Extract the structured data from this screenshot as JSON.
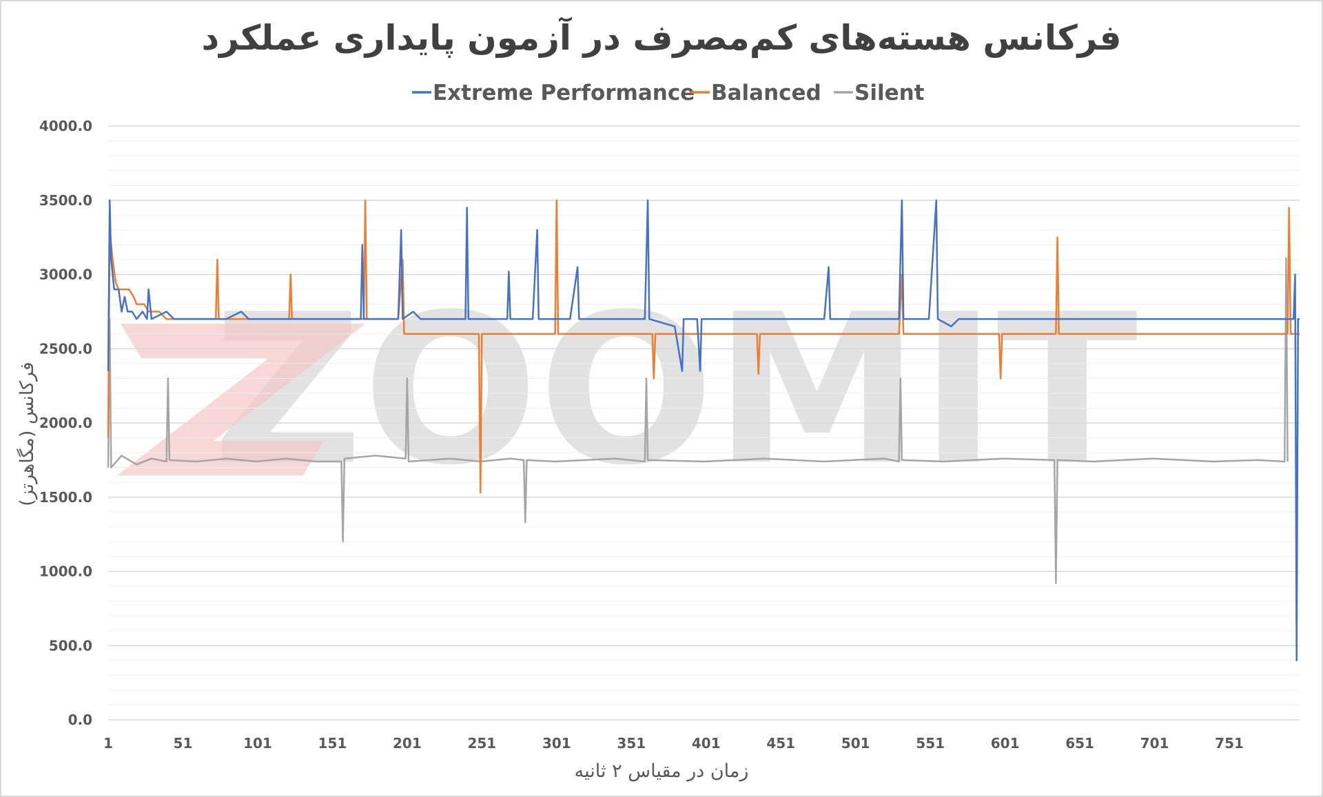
{
  "chart_data": {
    "type": "line",
    "title": "فرکانس هسته‌های کم‌مصرف در آزمون پایداری عملکرد",
    "xlabel": "زمان در مقیاس ۲ ثانیه",
    "ylabel": "فرکانس (مگاهرتز)",
    "watermark": "ZOOMIT",
    "legend_position": "top",
    "grid": true,
    "xlim": [
      1,
      798
    ],
    "ylim": [
      0,
      4000
    ],
    "y_ticks": [
      "0.0",
      "500.0",
      "1000.0",
      "1500.0",
      "2000.0",
      "2500.0",
      "3000.0",
      "3500.0",
      "4000.0"
    ],
    "x_ticks": [
      "1",
      "51",
      "101",
      "151",
      "201",
      "251",
      "301",
      "351",
      "401",
      "451",
      "501",
      "551",
      "601",
      "651",
      "701",
      "751"
    ],
    "series": [
      {
        "name": "Extreme Performance",
        "color": "#4472C4",
        "points": [
          [
            1,
            2350
          ],
          [
            2,
            3500
          ],
          [
            3,
            3100
          ],
          [
            5,
            2900
          ],
          [
            8,
            2900
          ],
          [
            10,
            2750
          ],
          [
            12,
            2850
          ],
          [
            14,
            2750
          ],
          [
            17,
            2750
          ],
          [
            20,
            2700
          ],
          [
            24,
            2750
          ],
          [
            27,
            2700
          ],
          [
            28,
            2900
          ],
          [
            30,
            2700
          ],
          [
            40,
            2750
          ],
          [
            45,
            2700
          ],
          [
            50,
            2700
          ],
          [
            60,
            2700
          ],
          [
            70,
            2700
          ],
          [
            80,
            2700
          ],
          [
            90,
            2750
          ],
          [
            95,
            2700
          ],
          [
            100,
            2700
          ],
          [
            110,
            2700
          ],
          [
            120,
            2700
          ],
          [
            130,
            2700
          ],
          [
            140,
            2700
          ],
          [
            150,
            2700
          ],
          [
            160,
            2700
          ],
          [
            170,
            2700
          ],
          [
            171,
            3200
          ],
          [
            172,
            2700
          ],
          [
            180,
            2700
          ],
          [
            195,
            2700
          ],
          [
            197,
            3300
          ],
          [
            198,
            2700
          ],
          [
            205,
            2750
          ],
          [
            210,
            2700
          ],
          [
            230,
            2700
          ],
          [
            240,
            2700
          ],
          [
            241,
            3450
          ],
          [
            242,
            2700
          ],
          [
            260,
            2700
          ],
          [
            268,
            2700
          ],
          [
            269,
            3020
          ],
          [
            270,
            2700
          ],
          [
            285,
            2700
          ],
          [
            288,
            3300
          ],
          [
            289,
            2700
          ],
          [
            310,
            2700
          ],
          [
            315,
            3050
          ],
          [
            316,
            2700
          ],
          [
            330,
            2700
          ],
          [
            345,
            2700
          ],
          [
            360,
            2700
          ],
          [
            362,
            3500
          ],
          [
            363,
            2700
          ],
          [
            380,
            2650
          ],
          [
            385,
            2350
          ],
          [
            386,
            2700
          ],
          [
            395,
            2700
          ],
          [
            397,
            2350
          ],
          [
            398,
            2700
          ],
          [
            420,
            2700
          ],
          [
            450,
            2700
          ],
          [
            480,
            2700
          ],
          [
            483,
            3050
          ],
          [
            484,
            2700
          ],
          [
            500,
            2700
          ],
          [
            520,
            2700
          ],
          [
            530,
            2700
          ],
          [
            532,
            3500
          ],
          [
            533,
            2700
          ],
          [
            550,
            2700
          ],
          [
            555,
            3500
          ],
          [
            556,
            2700
          ],
          [
            565,
            2650
          ],
          [
            570,
            2700
          ],
          [
            600,
            2700
          ],
          [
            630,
            2700
          ],
          [
            660,
            2700
          ],
          [
            700,
            2700
          ],
          [
            740,
            2700
          ],
          [
            770,
            2700
          ],
          [
            780,
            2700
          ],
          [
            790,
            2700
          ],
          [
            794,
            2700
          ],
          [
            795,
            3000
          ],
          [
            796,
            400
          ],
          [
            797,
            2700
          ],
          [
            798,
            2700
          ]
        ]
      },
      {
        "name": "Balanced",
        "color": "#ED7D31",
        "points": [
          [
            1,
            1900
          ],
          [
            2,
            3300
          ],
          [
            4,
            3100
          ],
          [
            6,
            2950
          ],
          [
            8,
            2900
          ],
          [
            15,
            2900
          ],
          [
            18,
            2850
          ],
          [
            20,
            2800
          ],
          [
            25,
            2800
          ],
          [
            28,
            2750
          ],
          [
            35,
            2750
          ],
          [
            40,
            2700
          ],
          [
            60,
            2700
          ],
          [
            73,
            2700
          ],
          [
            74,
            3100
          ],
          [
            75,
            2700
          ],
          [
            90,
            2700
          ],
          [
            110,
            2700
          ],
          [
            122,
            2700
          ],
          [
            123,
            3000
          ],
          [
            124,
            2700
          ],
          [
            140,
            2700
          ],
          [
            160,
            2700
          ],
          [
            172,
            2700
          ],
          [
            173,
            3500
          ],
          [
            174,
            2700
          ],
          [
            195,
            2700
          ],
          [
            198,
            3100
          ],
          [
            199,
            2600
          ],
          [
            210,
            2600
          ],
          [
            240,
            2600
          ],
          [
            249,
            2600
          ],
          [
            250,
            1530
          ],
          [
            251,
            2600
          ],
          [
            270,
            2600
          ],
          [
            300,
            2600
          ],
          [
            301,
            3500
          ],
          [
            302,
            2600
          ],
          [
            340,
            2600
          ],
          [
            365,
            2600
          ],
          [
            366,
            2300
          ],
          [
            367,
            2600
          ],
          [
            400,
            2600
          ],
          [
            435,
            2600
          ],
          [
            436,
            2330
          ],
          [
            437,
            2600
          ],
          [
            500,
            2600
          ],
          [
            530,
            2600
          ],
          [
            532,
            3000
          ],
          [
            533,
            2600
          ],
          [
            560,
            2600
          ],
          [
            597,
            2600
          ],
          [
            598,
            2300
          ],
          [
            599,
            2600
          ],
          [
            620,
            2600
          ],
          [
            635,
            2600
          ],
          [
            636,
            3250
          ],
          [
            637,
            2600
          ],
          [
            680,
            2600
          ],
          [
            720,
            2600
          ],
          [
            760,
            2600
          ],
          [
            790,
            2600
          ],
          [
            791,
            3450
          ],
          [
            792,
            2600
          ],
          [
            798,
            2600
          ]
        ]
      },
      {
        "name": "Silent",
        "color": "#A5A5A5",
        "points": [
          [
            1,
            1700
          ],
          [
            2,
            2700
          ],
          [
            3,
            1700
          ],
          [
            10,
            1780
          ],
          [
            20,
            1720
          ],
          [
            30,
            1760
          ],
          [
            40,
            1740
          ],
          [
            41,
            2300
          ],
          [
            42,
            1750
          ],
          [
            60,
            1740
          ],
          [
            80,
            1760
          ],
          [
            100,
            1740
          ],
          [
            120,
            1760
          ],
          [
            140,
            1740
          ],
          [
            157,
            1740
          ],
          [
            158,
            1200
          ],
          [
            159,
            1760
          ],
          [
            180,
            1780
          ],
          [
            200,
            1760
          ],
          [
            201,
            2300
          ],
          [
            202,
            1740
          ],
          [
            230,
            1760
          ],
          [
            250,
            1740
          ],
          [
            270,
            1760
          ],
          [
            279,
            1750
          ],
          [
            280,
            1330
          ],
          [
            281,
            1750
          ],
          [
            300,
            1740
          ],
          [
            340,
            1760
          ],
          [
            360,
            1740
          ],
          [
            361,
            2300
          ],
          [
            362,
            1750
          ],
          [
            400,
            1740
          ],
          [
            440,
            1760
          ],
          [
            480,
            1740
          ],
          [
            520,
            1760
          ],
          [
            530,
            1740
          ],
          [
            531,
            2300
          ],
          [
            532,
            1750
          ],
          [
            560,
            1740
          ],
          [
            600,
            1760
          ],
          [
            634,
            1750
          ],
          [
            635,
            920
          ],
          [
            636,
            1750
          ],
          [
            660,
            1740
          ],
          [
            700,
            1760
          ],
          [
            740,
            1740
          ],
          [
            770,
            1750
          ],
          [
            788,
            1740
          ],
          [
            789,
            3110
          ],
          [
            790,
            1740
          ]
        ]
      }
    ]
  }
}
